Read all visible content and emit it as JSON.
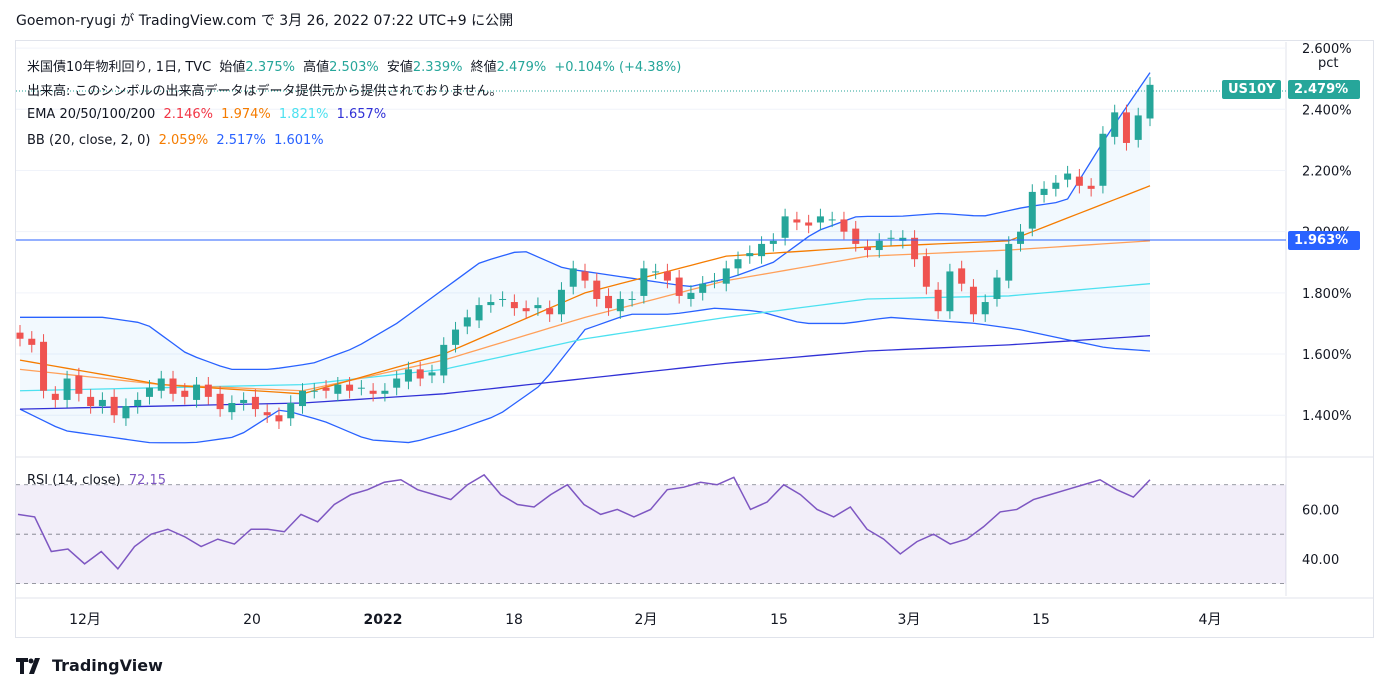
{
  "header": {
    "text": "Goemon-ryugi が TradingView.com で 3月 26, 2022 07:22 UTC+9 に公開"
  },
  "legend": {
    "symbol": "米国債10年物利回り, 1日, TVC",
    "open_label": "始値",
    "open": "2.375%",
    "high_label": "高値",
    "high": "2.503%",
    "low_label": "安値",
    "low": "2.339%",
    "close_label": "終値",
    "close": "2.479%",
    "change": "+0.104% (+4.38%)",
    "volume_note": "出来高: このシンボルの出来高データはデータ提供元から提供されておりません。",
    "ema_label": "EMA 20/50/100/200",
    "ema20": "2.146%",
    "ema50": "1.974%",
    "ema100": "1.821%",
    "ema200": "1.657%",
    "bb_label": "BB (20, close, 2, 0)",
    "bb_basis": "2.059%",
    "bb_upper": "2.517%",
    "bb_lower": "1.601%",
    "rsi_label": "RSI (14, close)",
    "rsi_value": "72.15"
  },
  "price_axis": {
    "unit": "pct",
    "ticks": [
      "2.600%",
      "2.400%",
      "2.200%",
      "2.000%",
      "1.800%",
      "1.600%",
      "1.400%"
    ],
    "symbol_tag": "US10Y",
    "last_price": "2.479%",
    "crosshair_price": "1.963%"
  },
  "rsi_axis": {
    "ticks": [
      "60.00",
      "40.00"
    ]
  },
  "time_axis": {
    "labels": [
      "12月",
      "20",
      "2022",
      "18",
      "2月",
      "15",
      "3月",
      "15",
      "4月"
    ]
  },
  "footer": {
    "brand": "TradingView"
  },
  "colors": {
    "up": "#26a69a",
    "down": "#ef5350",
    "ema20": "#f23645",
    "ema50": "#f57c00",
    "ema100": "#ffa05a",
    "ema200_cyan": "#4de1f0",
    "ema200": "#3131d6",
    "bb": "#2962ff",
    "rsi": "#7e57c2"
  },
  "chart_data": {
    "type": "candlestick",
    "ylim": [
      1.27,
      2.62
    ],
    "close_series_approx": [
      1.65,
      1.63,
      1.48,
      1.45,
      1.52,
      1.47,
      1.43,
      1.45,
      1.4,
      1.43,
      1.45,
      1.49,
      1.52,
      1.47,
      1.46,
      1.5,
      1.46,
      1.42,
      1.44,
      1.45,
      1.42,
      1.4,
      1.38,
      1.44,
      1.48,
      1.48,
      1.48,
      1.5,
      1.48,
      1.49,
      1.47,
      1.48,
      1.52,
      1.55,
      1.52,
      1.54,
      1.63,
      1.68,
      1.72,
      1.76,
      1.77,
      1.78,
      1.75,
      1.74,
      1.76,
      1.73,
      1.81,
      1.88,
      1.84,
      1.78,
      1.75,
      1.78,
      1.78,
      1.88,
      1.87,
      1.84,
      1.79,
      1.8,
      1.83,
      1.84,
      1.88,
      1.91,
      1.93,
      1.96,
      1.97,
      2.05,
      2.03,
      2.02,
      2.05,
      2.04,
      2.0,
      1.96,
      1.94,
      1.97,
      1.98,
      1.98,
      1.91,
      1.82,
      1.74,
      1.87,
      1.83,
      1.73,
      1.77,
      1.85,
      1.96,
      2.0,
      2.13,
      2.14,
      2.16,
      2.19,
      2.15,
      2.14,
      2.32,
      2.39,
      2.29,
      2.38,
      2.48
    ],
    "bb_upper_approx": [
      1.72,
      1.72,
      1.72,
      1.7,
      1.6,
      1.55,
      1.55,
      1.57,
      1.62,
      1.7,
      1.8,
      1.9,
      1.94,
      1.88,
      1.86,
      1.84,
      1.82,
      1.85,
      1.9,
      2.0,
      2.05,
      2.05,
      2.06,
      2.05,
      2.08,
      2.1,
      2.32,
      2.52
    ],
    "bb_lower_approx": [
      1.42,
      1.35,
      1.33,
      1.31,
      1.31,
      1.33,
      1.42,
      1.38,
      1.32,
      1.31,
      1.35,
      1.4,
      1.5,
      1.68,
      1.73,
      1.73,
      1.75,
      1.74,
      1.7,
      1.7,
      1.72,
      1.71,
      1.7,
      1.68,
      1.65,
      1.62,
      1.61
    ],
    "ema200_approx": [
      1.42,
      1.43,
      1.44,
      1.47,
      1.52,
      1.57,
      1.61,
      1.63,
      1.66
    ],
    "ema100_approx": [
      1.48,
      1.49,
      1.5,
      1.55,
      1.65,
      1.72,
      1.78,
      1.79,
      1.83
    ],
    "ema50_approx": [
      1.55,
      1.5,
      1.48,
      1.58,
      1.72,
      1.84,
      1.92,
      1.94,
      1.97
    ],
    "ema20_approx": [
      1.58,
      1.5,
      1.47,
      1.6,
      1.8,
      1.92,
      1.95,
      1.97,
      2.15
    ],
    "rsi_approx": [
      58,
      57,
      43,
      44,
      38,
      43,
      36,
      45,
      50,
      52,
      49,
      45,
      48,
      46,
      52,
      52,
      51,
      58,
      55,
      62,
      66,
      68,
      71,
      72,
      68,
      66,
      64,
      70,
      74,
      66,
      62,
      61,
      66,
      70,
      62,
      58,
      60,
      57,
      60,
      68,
      69,
      71,
      70,
      73,
      60,
      63,
      70,
      66,
      60,
      57,
      61,
      52,
      48,
      42,
      47,
      50,
      46,
      48,
      53,
      59,
      60,
      64,
      66,
      68,
      70,
      72,
      68,
      65,
      72
    ]
  }
}
